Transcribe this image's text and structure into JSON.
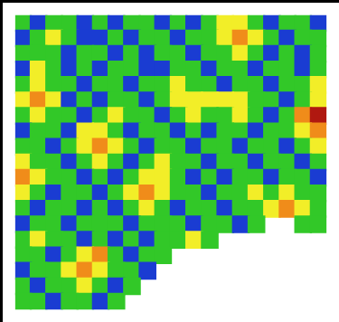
{
  "chart_data": {
    "type": "heatmap",
    "tick_labels": false,
    "grid": false,
    "color_range": [
      0,
      4
    ],
    "cells": [
      [
        1,
        0,
        1,
        1,
        0,
        1,
        0,
        1,
        1,
        0,
        1,
        0,
        1,
        2,
        2,
        1,
        0,
        1,
        1,
        0
      ],
      [
        0,
        1,
        2,
        1,
        0,
        0,
        1,
        0,
        1,
        1,
        0,
        1,
        1,
        2,
        3,
        2,
        1,
        0,
        1,
        1
      ],
      [
        1,
        1,
        1,
        0,
        1,
        1,
        0,
        1,
        0,
        1,
        1,
        0,
        1,
        1,
        2,
        1,
        0,
        1,
        0,
        1
      ],
      [
        0,
        2,
        1,
        0,
        1,
        0,
        1,
        1,
        0,
        0,
        1,
        1,
        0,
        1,
        1,
        0,
        1,
        1,
        0,
        1
      ],
      [
        1,
        2,
        1,
        1,
        0,
        1,
        1,
        0,
        1,
        1,
        2,
        1,
        1,
        0,
        1,
        1,
        0,
        1,
        1,
        2
      ],
      [
        2,
        3,
        2,
        0,
        1,
        0,
        1,
        1,
        0,
        1,
        2,
        2,
        2,
        2,
        2,
        1,
        1,
        0,
        1,
        2
      ],
      [
        1,
        2,
        1,
        1,
        0,
        1,
        2,
        1,
        1,
        0,
        1,
        2,
        1,
        1,
        2,
        1,
        0,
        1,
        3,
        4
      ],
      [
        0,
        1,
        1,
        0,
        2,
        2,
        1,
        0,
        1,
        1,
        0,
        1,
        0,
        1,
        1,
        0,
        1,
        1,
        2,
        3
      ],
      [
        1,
        1,
        0,
        1,
        2,
        3,
        2,
        1,
        0,
        1,
        1,
        0,
        1,
        1,
        0,
        1,
        1,
        0,
        1,
        2
      ],
      [
        2,
        1,
        1,
        0,
        1,
        2,
        1,
        0,
        1,
        2,
        1,
        1,
        0,
        1,
        1,
        0,
        1,
        1,
        0,
        1
      ],
      [
        3,
        2,
        1,
        1,
        0,
        1,
        0,
        1,
        2,
        2,
        1,
        0,
        1,
        0,
        1,
        1,
        0,
        1,
        1,
        0
      ],
      [
        2,
        1,
        0,
        1,
        1,
        0,
        1,
        2,
        3,
        2,
        1,
        1,
        0,
        1,
        1,
        2,
        1,
        2,
        1,
        1
      ],
      [
        1,
        0,
        1,
        1,
        0,
        1,
        0,
        1,
        2,
        1,
        0,
        1,
        1,
        0,
        1,
        1,
        2,
        3,
        2,
        1
      ],
      [
        0,
        1,
        1,
        0,
        1,
        1,
        1,
        0,
        1,
        1,
        1,
        0,
        1,
        1,
        0,
        1,
        null,
        null,
        1,
        1
      ],
      [
        1,
        2,
        1,
        1,
        0,
        1,
        0,
        1,
        0,
        1,
        1,
        2,
        1,
        null,
        null,
        null,
        null,
        null,
        null,
        null
      ],
      [
        1,
        1,
        0,
        1,
        2,
        3,
        1,
        0,
        1,
        1,
        null,
        null,
        null,
        null,
        null,
        null,
        null,
        null,
        null,
        null
      ],
      [
        0,
        1,
        1,
        2,
        3,
        2,
        1,
        1,
        0,
        null,
        null,
        null,
        null,
        null,
        null,
        null,
        null,
        null,
        null,
        null
      ],
      [
        1,
        0,
        1,
        1,
        2,
        1,
        0,
        1,
        null,
        null,
        null,
        null,
        null,
        null,
        null,
        null,
        null,
        null,
        null,
        null
      ],
      [
        1,
        1,
        0,
        1,
        1,
        0,
        1,
        null,
        null,
        null,
        null,
        null,
        null,
        null,
        null,
        null,
        null,
        null,
        null,
        null
      ]
    ]
  }
}
